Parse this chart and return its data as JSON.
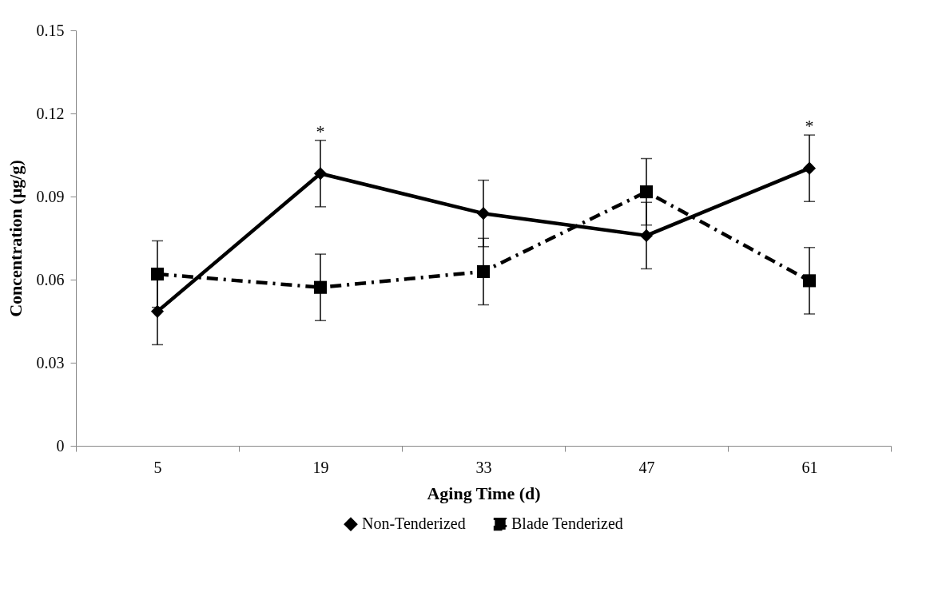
{
  "chart_data": {
    "type": "line",
    "xlabel": "Aging Time (d)",
    "ylabel": "Concentration (µg/g)",
    "categories": [
      "5",
      "19",
      "33",
      "47",
      "61"
    ],
    "series": [
      {
        "name": "Non-Tenderized",
        "color": "#000000",
        "marker": "diamond",
        "line_style": "solid",
        "values": [
          0.0485,
          0.0983,
          0.0839,
          0.0759,
          0.1002
        ],
        "errors": [
          0.012,
          0.012,
          0.012,
          0.012,
          0.012
        ]
      },
      {
        "name": "Blade Tenderized",
        "color": "#000000",
        "marker": "square",
        "line_style": "dashed",
        "values": [
          0.062,
          0.0572,
          0.0629,
          0.0917,
          0.0596
        ],
        "errors": [
          0.012,
          0.012,
          0.012,
          0.012,
          0.012
        ]
      }
    ],
    "annotations": [
      {
        "text": "*",
        "x": "19",
        "y": 0.11
      },
      {
        "text": "*",
        "x": "61",
        "y": 0.112
      }
    ],
    "ylim": [
      0,
      0.15
    ],
    "yticks": [
      0,
      0.03,
      0.06,
      0.09,
      0.12,
      0.15
    ],
    "grid": false,
    "legend": "bottom"
  }
}
